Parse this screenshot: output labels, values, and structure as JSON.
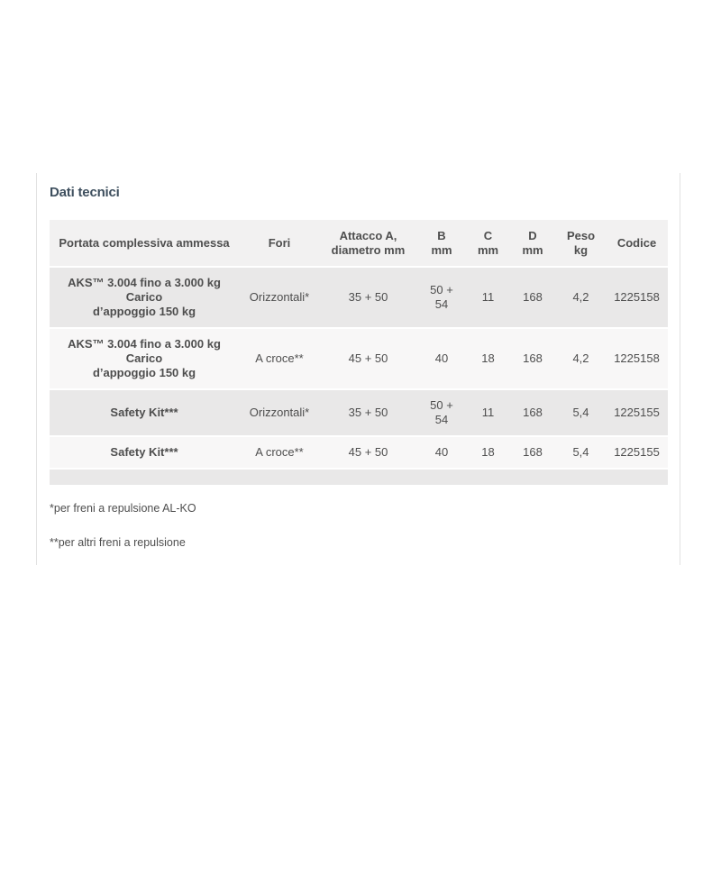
{
  "section": {
    "title": "Dati tecnici"
  },
  "table": {
    "columns": [
      "Portata complessiva ammessa",
      "Fori",
      "Attacco A,\ndiametro mm",
      "B\nmm",
      "C\nmm",
      "D\nmm",
      "Peso\nkg",
      "Codice"
    ],
    "rows": [
      [
        "AKS™ 3.004 fino a 3.000 kg Carico\nd’appoggio 150 kg",
        "Orizzontali*",
        "35 + 50",
        "50 +\n54",
        "11",
        "168",
        "4,2",
        "1225158"
      ],
      [
        "AKS™ 3.004 fino a 3.000 kg Carico\nd’appoggio 150 kg",
        "A croce**",
        "45 + 50",
        "40",
        "18",
        "168",
        "4,2",
        "1225158"
      ],
      [
        "Safety Kit***",
        "Orizzontali*",
        "35 + 50",
        "50 +\n54",
        "11",
        "168",
        "5,4",
        "1225155"
      ],
      [
        "Safety Kit***",
        "A croce**",
        "45 + 50",
        "40",
        "18",
        "168",
        "5,4",
        "1225155"
      ]
    ]
  },
  "footnotes": [
    "*per freni a repulsione AL-KO",
    "**per altri freni a repulsione"
  ],
  "colors": {
    "title": "#3e4f5e",
    "text": "#4e4e4e",
    "header_bg": "#f2f1f1",
    "row_odd_bg": "#e9e8e8",
    "row_even_bg": "#f8f7f7",
    "card_border": "#e2e2e2"
  }
}
